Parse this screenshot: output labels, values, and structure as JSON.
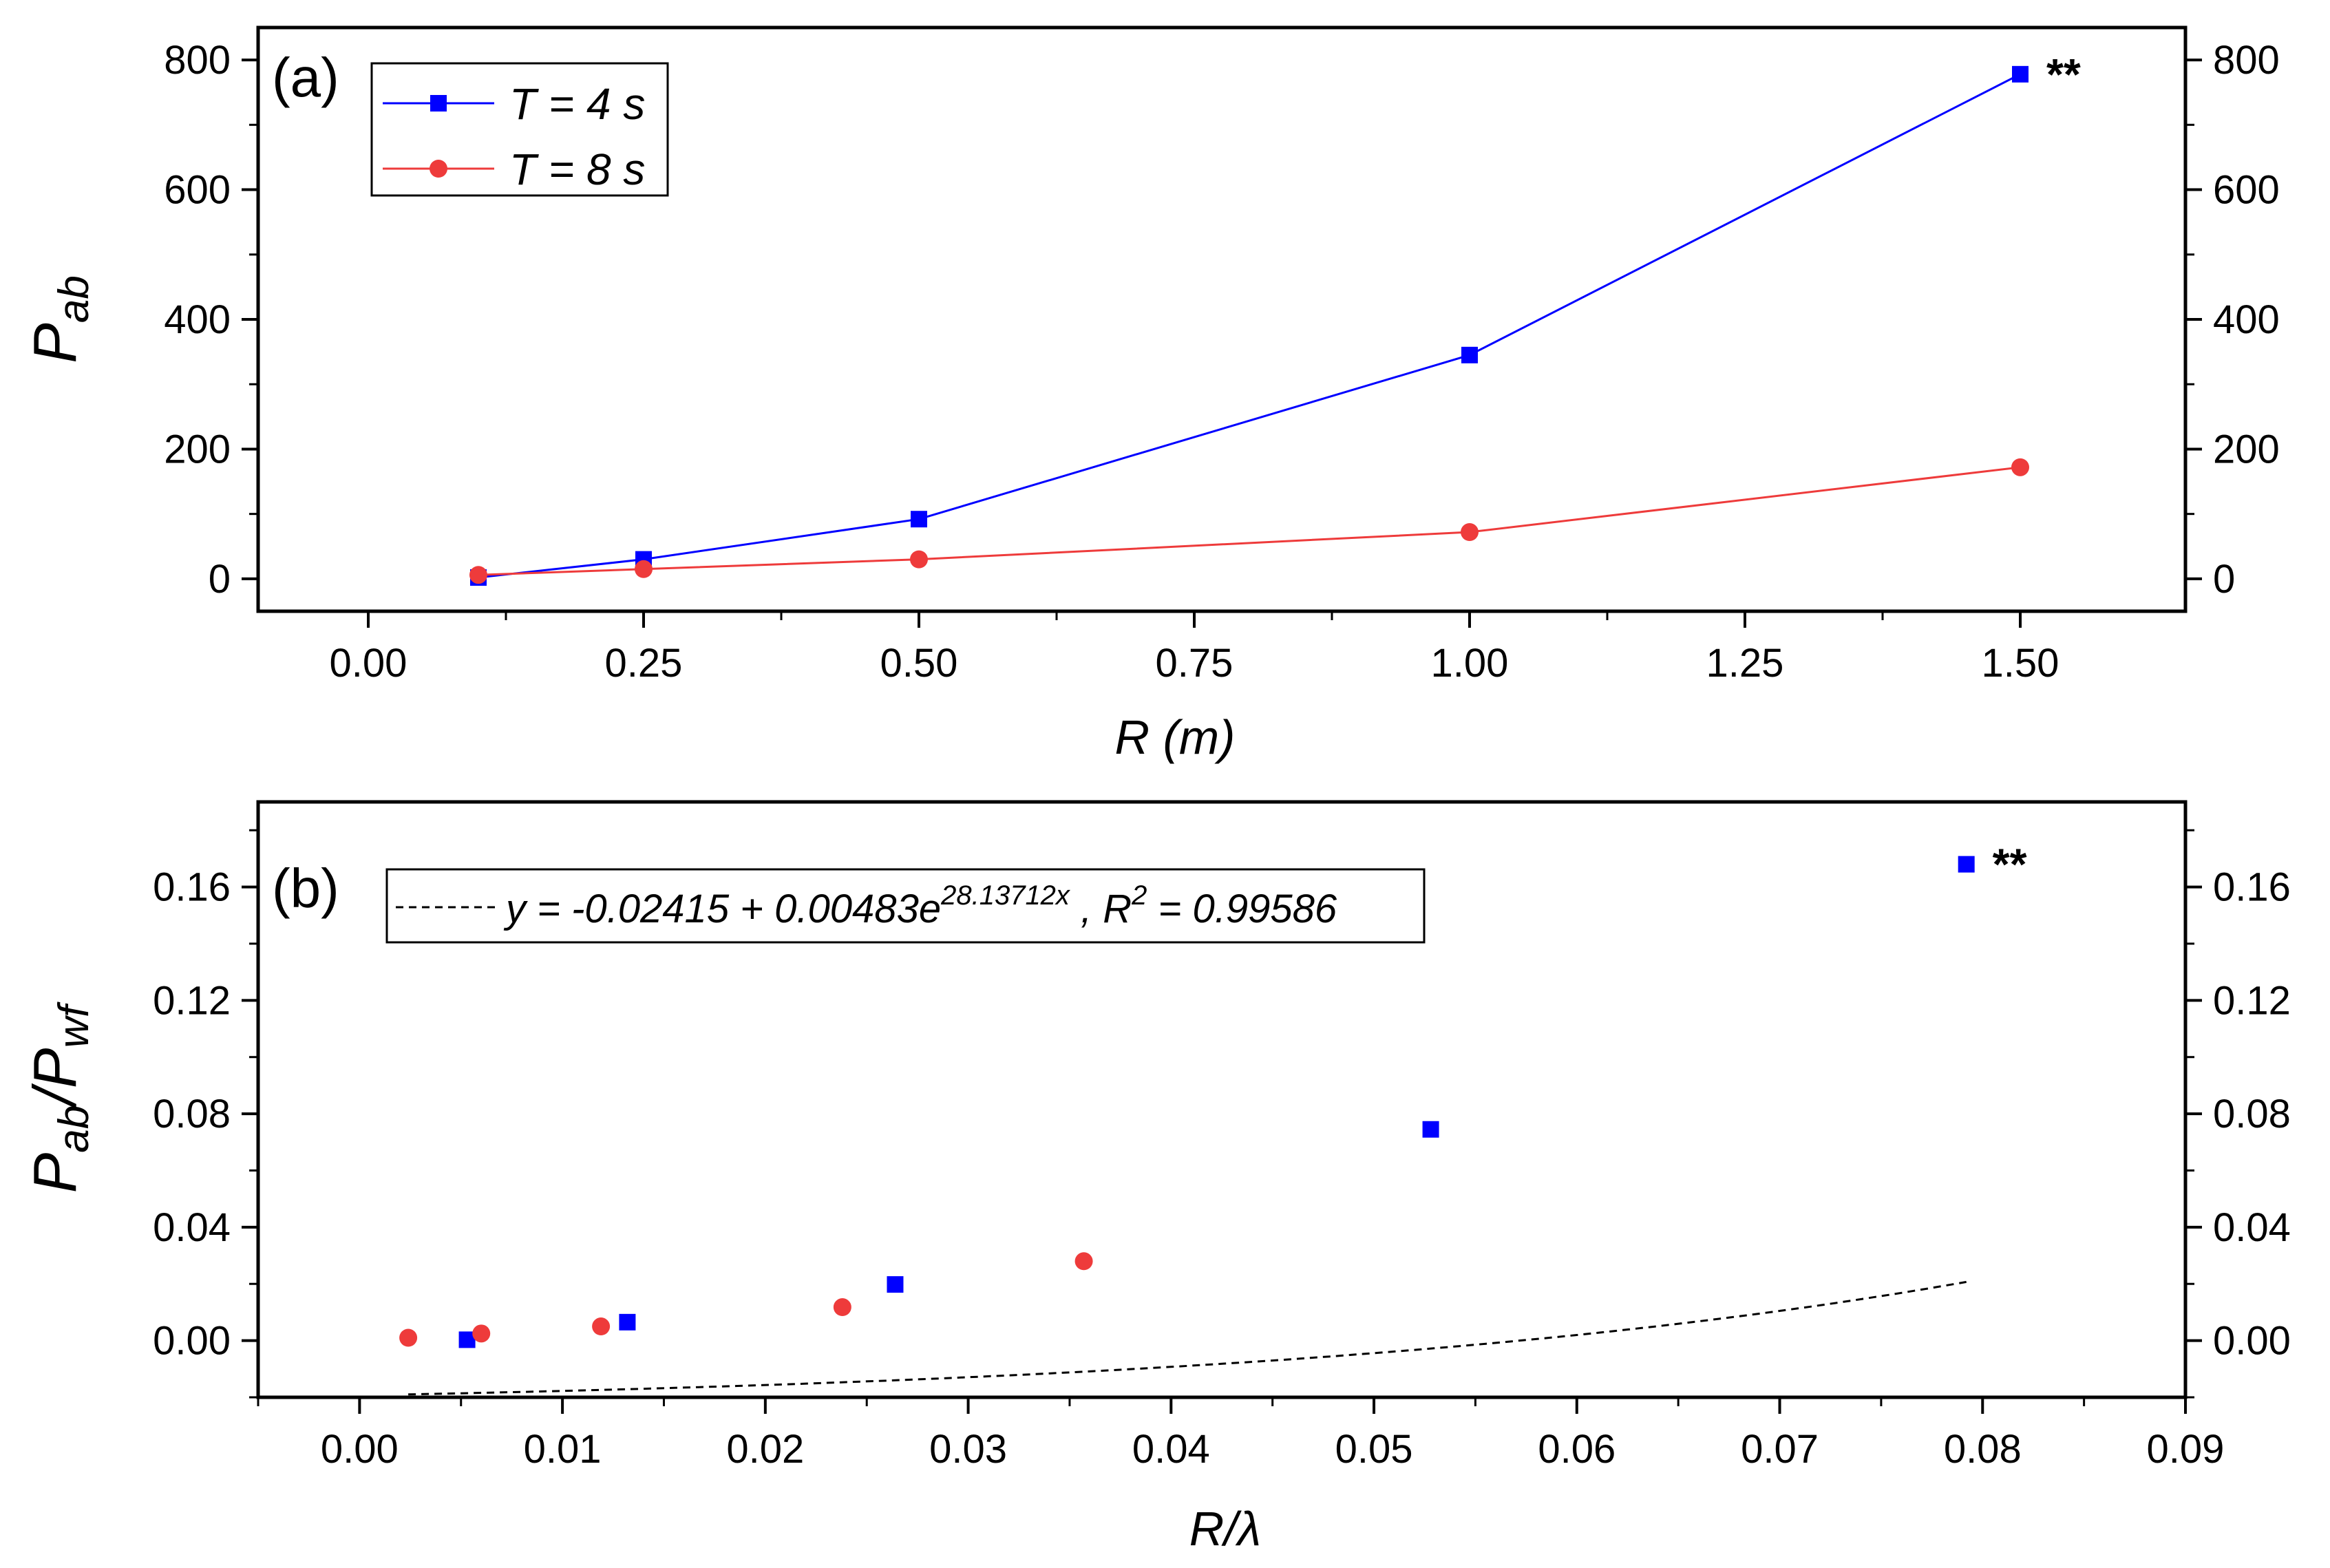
{
  "chart_data": [
    {
      "type": "line",
      "panel_label": "(a)",
      "xlabel": "R (m)",
      "ylabel_main": "P",
      "ylabel_sub": "ab",
      "xlim": [
        -0.1,
        1.65
      ],
      "ylim": [
        -50,
        850
      ],
      "xticks": [
        0.0,
        0.25,
        0.5,
        0.75,
        1.0,
        1.25,
        1.5
      ],
      "xtick_labels": [
        "0.00",
        "0.25",
        "0.50",
        "0.75",
        "1.00",
        "1.25",
        "1.50"
      ],
      "yticks": [
        0,
        200,
        400,
        600,
        800
      ],
      "ytick_labels": [
        "0",
        "200",
        "400",
        "600",
        "800"
      ],
      "legend_position": "top-left",
      "series": [
        {
          "name": "T = 4 s",
          "color": "#0000ff",
          "marker": "square",
          "x": [
            0.1,
            0.25,
            0.5,
            1.0,
            1.5
          ],
          "y": [
            2,
            30,
            92,
            345,
            778
          ]
        },
        {
          "name": "T = 8 s",
          "color": "#ee3b3b",
          "marker": "circle",
          "x": [
            0.1,
            0.25,
            0.5,
            1.0,
            1.5
          ],
          "y": [
            6,
            15,
            30,
            72,
            172
          ]
        }
      ],
      "annotation": {
        "text": "**",
        "x": 1.5,
        "y": 778
      }
    },
    {
      "type": "scatter",
      "panel_label": "(b)",
      "xlabel": "R/λ",
      "ylabel_main": "P",
      "ylabel_sub": "ab",
      "ylabel_mid": "/P",
      "ylabel_sub2": "wf",
      "xlim": [
        -0.005,
        0.09
      ],
      "ylim": [
        -0.02,
        0.19
      ],
      "xticks": [
        0.0,
        0.01,
        0.02,
        0.03,
        0.04,
        0.05,
        0.06,
        0.07,
        0.08,
        0.09
      ],
      "xtick_labels": [
        "0.00",
        "0.01",
        "0.02",
        "0.03",
        "0.04",
        "0.05",
        "0.06",
        "0.07",
        "0.08",
        "0.09"
      ],
      "yticks": [
        0.0,
        0.04,
        0.08,
        0.12,
        0.16
      ],
      "ytick_labels": [
        "0.00",
        "0.04",
        "0.08",
        "0.12",
        "0.16"
      ],
      "series": [
        {
          "name": "T = 4 s",
          "color": "#0000ff",
          "marker": "square",
          "x": [
            0.0053,
            0.0132,
            0.0264,
            0.0528,
            0.0792
          ],
          "y": [
            0.0003,
            0.0065,
            0.0198,
            0.0745,
            0.168
          ]
        },
        {
          "name": "T = 8 s",
          "color": "#ee3b3b",
          "marker": "circle",
          "x": [
            0.0024,
            0.006,
            0.0119,
            0.0238,
            0.0357
          ],
          "y": [
            0.001,
            0.0025,
            0.005,
            0.0118,
            0.028
          ]
        }
      ],
      "fit": {
        "a": -0.02415,
        "b": 0.00483,
        "c": 28.13712,
        "x_range": [
          0.0024,
          0.0792
        ],
        "label_pre": "y = -0.02415 + 0.00483e",
        "label_exp": "28.13712x",
        "label_mid": " , R",
        "label_sq": "2",
        "label_post": " = 0.99586"
      },
      "annotation": {
        "text": "**",
        "x": 0.0792,
        "y": 0.168
      }
    }
  ]
}
